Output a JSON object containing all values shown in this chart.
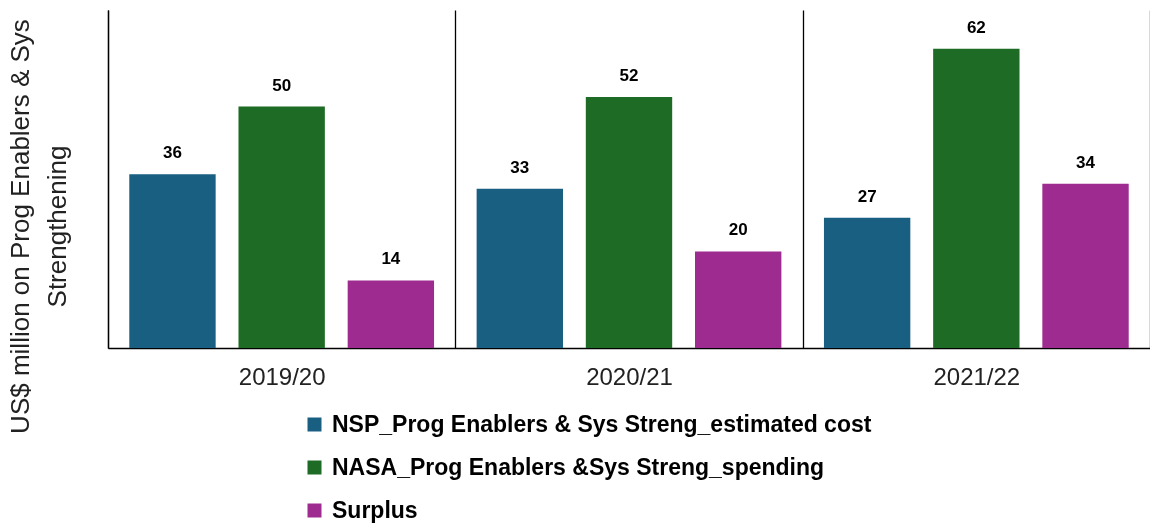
{
  "chart_data": {
    "type": "bar",
    "ylabel": "US$ million on Prog Enablers & Sys Strengthening",
    "categories": [
      "2019/20",
      "2020/21",
      "2021/22"
    ],
    "series": [
      {
        "name": "NSP_Prog Enablers & Sys Streng_estimated cost",
        "color": "#185f82",
        "values": [
          36,
          33,
          27
        ]
      },
      {
        "name": "NASA_Prog Enablers &Sys Streng_spending",
        "color": "#1d6b24",
        "values": [
          50,
          52,
          62
        ]
      },
      {
        "name": "Surplus",
        "color": "#9e2b8f",
        "values": [
          14,
          20,
          34
        ]
      }
    ],
    "ylim": [
      0,
      70
    ],
    "data_labels": true,
    "grid": "x",
    "legend": "bottom",
    "tick_labels": "x"
  }
}
